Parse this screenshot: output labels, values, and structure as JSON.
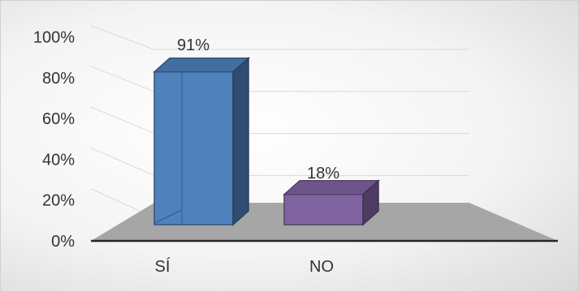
{
  "chart_data": {
    "type": "bar",
    "categories": [
      "SÍ",
      "NO"
    ],
    "values": [
      91,
      18
    ],
    "data_labels": [
      "91%",
      "18%"
    ],
    "y_ticks": [
      "0%",
      "20%",
      "40%",
      "60%",
      "80%",
      "100%"
    ],
    "ylim": [
      0,
      100
    ],
    "title": "",
    "xlabel": "",
    "ylabel": "",
    "grid": true,
    "style": "3d-column",
    "colors": {
      "SÍ": "#4f81bd",
      "NO": "#8064a2",
      "floor": "#a6a6a6"
    }
  }
}
